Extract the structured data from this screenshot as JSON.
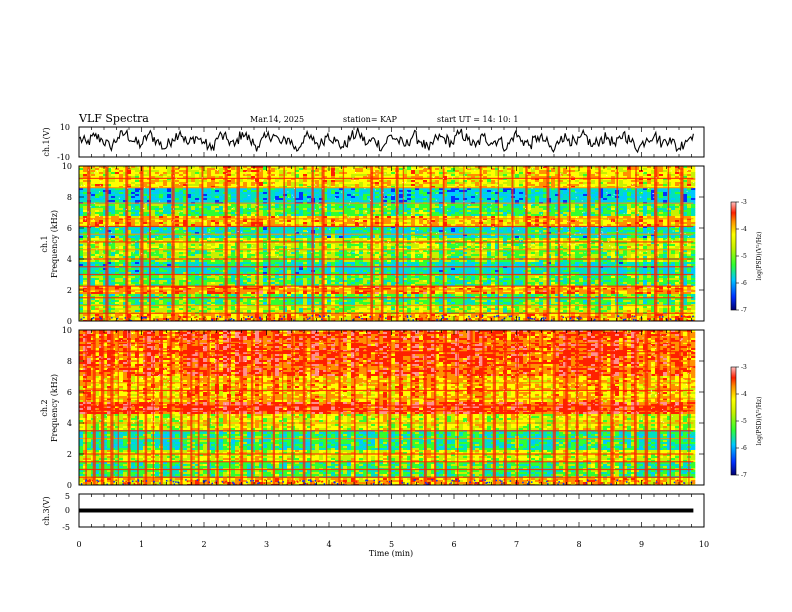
{
  "header": {
    "title": "VLF Spectra",
    "date": "Mar.14, 2025",
    "station": "station= KAP",
    "start": "start  UT =   14: 10: 1"
  },
  "chart_data": [
    {
      "type": "line",
      "name": "ch1-waveform",
      "ylabel": "ch.1(V)",
      "ylim": [
        -10,
        10
      ],
      "yticks": [
        "10",
        "-10"
      ],
      "xlim": [
        0,
        10
      ],
      "x_extent": [
        0,
        9.83
      ],
      "values": [
        2.5,
        -1.0,
        4.0,
        1.5,
        -3.5,
        3.0,
        6.0,
        0.5,
        -2.0,
        5.5,
        1.0,
        -4.5,
        2.0,
        7.0,
        -1.5,
        3.5,
        0.0,
        -5.0,
        4.5,
        2.0,
        -2.5,
        6.5,
        1.0,
        -3.0,
        3.0,
        5.0,
        -1.0,
        2.5,
        -6.0,
        4.0,
        1.5,
        -2.0,
        5.5,
        0.5,
        -3.5,
        3.5,
        6.0,
        -1.5,
        2.0,
        -4.0,
        4.5,
        1.0,
        -2.5,
        5.0,
        0.0,
        -5.5,
        3.0,
        2.5,
        -1.0,
        6.5,
        1.5,
        -3.0,
        4.0,
        -0.5,
        2.0,
        -4.5,
        5.5,
        1.0,
        -2.0,
        3.5,
        0.5,
        -6.5,
        4.0,
        2.0,
        -1.5,
        5.0,
        -3.0,
        1.5,
        3.0,
        -2.5,
        6.0,
        0.0,
        -4.0,
        2.5,
        4.5,
        -1.0,
        3.0,
        -5.0,
        1.0,
        5.5
      ]
    },
    {
      "type": "heatmap",
      "name": "ch1-spectrogram",
      "ylabel": "ch.1",
      "ylabel2": "Frequency (kHz)",
      "ylim": [
        0,
        10
      ],
      "yticks": [
        "0",
        "2",
        "4",
        "6",
        "8",
        "10"
      ],
      "xlim": [
        0,
        10
      ],
      "x_extent": [
        0,
        9.83
      ],
      "colorscale": [
        "#000070",
        "#0030ff",
        "#00c8ff",
        "#00e0c0",
        "#30ff30",
        "#c8f000",
        "#ffff00",
        "#ff9000",
        "#ff2000",
        "#ff9090"
      ],
      "background_level": 0.5,
      "bands": [
        {
          "f": [
            0.0,
            0.4
          ],
          "level": 0.7
        },
        {
          "f": [
            0.4,
            1.0
          ],
          "level": 0.55
        },
        {
          "f": [
            1.0,
            1.7
          ],
          "level": 0.45
        },
        {
          "f": [
            1.7,
            2.3
          ],
          "level": 0.75
        },
        {
          "f": [
            2.3,
            3.0
          ],
          "level": 0.45
        },
        {
          "f": [
            3.0,
            3.8
          ],
          "level": 0.35
        },
        {
          "f": [
            3.8,
            4.6
          ],
          "level": 0.5
        },
        {
          "f": [
            4.6,
            5.4
          ],
          "level": 0.55
        },
        {
          "f": [
            5.4,
            6.1
          ],
          "level": 0.35
        },
        {
          "f": [
            6.1,
            6.8
          ],
          "level": 0.7
        },
        {
          "f": [
            6.8,
            7.5
          ],
          "level": 0.45
        },
        {
          "f": [
            7.5,
            8.6
          ],
          "level": 0.3
        },
        {
          "f": [
            8.6,
            10.0
          ],
          "level": 0.65
        }
      ],
      "lines_f": [
        0.5,
        1.0,
        1.5,
        2.0,
        2.25,
        3.0,
        3.5,
        4.0,
        4.6,
        5.1,
        5.6,
        6.1,
        6.6,
        7.6,
        8.6,
        9.2
      ],
      "bursts_x": [
        0.13,
        0.42,
        0.74,
        0.98,
        1.12,
        1.48,
        1.71,
        1.96,
        2.33,
        2.52,
        2.84,
        3.03,
        3.27,
        3.45,
        3.72,
        3.88,
        4.22,
        4.66,
        4.83,
        5.07,
        5.18,
        5.61,
        5.82,
        6.15,
        6.41,
        6.7,
        6.92,
        7.14,
        7.48,
        7.66,
        7.84,
        8.13,
        8.31,
        8.6,
        8.9,
        9.2,
        9.42,
        9.62
      ]
    },
    {
      "type": "heatmap",
      "name": "ch2-spectrogram",
      "ylabel": "ch.2",
      "ylabel2": "Frequency (kHz)",
      "ylim": [
        0,
        10
      ],
      "yticks": [
        "0",
        "2",
        "4",
        "6",
        "8",
        "10"
      ],
      "xlim": [
        0,
        10
      ],
      "x_extent": [
        0,
        9.83
      ],
      "colorscale": [
        "#000070",
        "#0030ff",
        "#00c8ff",
        "#00e0c0",
        "#30ff30",
        "#c8f000",
        "#ffff00",
        "#ff9000",
        "#ff2000",
        "#ff9090"
      ],
      "background_level": 0.6,
      "bands": [
        {
          "f": [
            0.0,
            0.4
          ],
          "level": 0.7
        },
        {
          "f": [
            0.4,
            1.5
          ],
          "level": 0.45
        },
        {
          "f": [
            1.5,
            2.2
          ],
          "level": 0.6
        },
        {
          "f": [
            2.2,
            3.6
          ],
          "level": 0.4
        },
        {
          "f": [
            3.6,
            4.6
          ],
          "level": 0.6
        },
        {
          "f": [
            4.6,
            5.4
          ],
          "level": 0.85
        },
        {
          "f": [
            5.4,
            7.0
          ],
          "level": 0.7
        },
        {
          "f": [
            7.0,
            10.0
          ],
          "level": 0.82
        }
      ],
      "lines_f": [
        0.5,
        1.0,
        1.5,
        2.0,
        3.0,
        3.5,
        4.0,
        4.8,
        5.1,
        5.6,
        6.1,
        6.6,
        7.6,
        8.6,
        9.2
      ],
      "bursts_x": [
        0.1,
        0.22,
        0.35,
        0.5,
        0.62,
        0.78,
        0.93,
        1.05,
        1.18,
        1.3,
        1.45,
        1.62,
        1.78,
        1.9,
        2.05,
        2.2,
        2.4,
        2.58,
        2.75,
        2.92,
        3.1,
        3.25,
        3.4,
        3.58,
        3.7,
        3.95,
        4.15,
        4.4,
        4.6,
        4.78,
        4.95,
        5.12,
        5.3,
        5.52,
        5.68,
        5.85,
        6.05,
        6.25,
        6.45,
        6.62,
        6.8,
        7.0,
        7.2,
        7.4,
        7.58,
        7.78,
        7.95,
        8.12,
        8.3,
        8.5,
        8.7,
        8.88,
        9.05,
        9.25,
        9.45,
        9.6,
        9.75
      ]
    },
    {
      "type": "line",
      "name": "ch3-waveform",
      "ylabel": "ch.3(V)",
      "ylim": [
        -5,
        5
      ],
      "yticks": [
        "5",
        "0",
        "-5"
      ],
      "xlim": [
        0,
        10
      ],
      "x_extent": [
        0,
        9.83
      ],
      "band": [
        -0.6,
        0.6
      ]
    }
  ],
  "xaxis": {
    "xlabel": "Time (min)",
    "ticks": [
      "0",
      "1",
      "2",
      "3",
      "4",
      "5",
      "6",
      "7",
      "8",
      "9",
      "10"
    ]
  },
  "colorbars": [
    {
      "ticks": [
        "-3",
        "-4",
        "-5",
        "-6",
        "-7"
      ],
      "label": "log(PSD)(V²/Hz)"
    },
    {
      "ticks": [
        "-3",
        "-4",
        "-5",
        "-6",
        "-7"
      ],
      "label": "log(PSD)(V²/Hz)"
    }
  ]
}
